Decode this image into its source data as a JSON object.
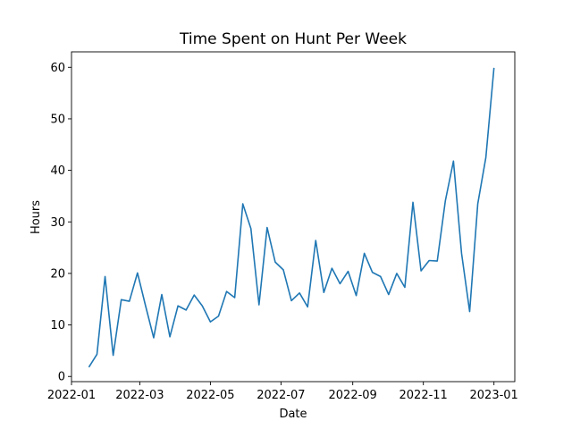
{
  "chart_data": {
    "type": "line",
    "title": "Time Spent on Hunt Per Week",
    "xlabel": "Date",
    "ylabel": "Hours",
    "ylim": [
      -1,
      63
    ],
    "xlim": [
      "2022-01-01",
      "2023-01-19"
    ],
    "grid": false,
    "line_color": "#1f77b4",
    "y_ticks": [
      0,
      10,
      20,
      30,
      40,
      50,
      60
    ],
    "x_ticks": [
      "2022-01-01",
      "2022-03-01",
      "2022-05-01",
      "2022-07-01",
      "2022-09-01",
      "2022-11-01",
      "2023-01-01"
    ],
    "x_tick_labels": [
      "2022-01",
      "2022-03",
      "2022-05",
      "2022-07",
      "2022-09",
      "2022-11",
      "2023-01"
    ],
    "series": [
      {
        "x": [
          "2022-01-16",
          "2022-01-23",
          "2022-01-30",
          "2022-02-06",
          "2022-02-13",
          "2022-02-20",
          "2022-02-27",
          "2022-03-06",
          "2022-03-13",
          "2022-03-20",
          "2022-03-27",
          "2022-04-03",
          "2022-04-10",
          "2022-04-17",
          "2022-04-24",
          "2022-05-01",
          "2022-05-08",
          "2022-05-15",
          "2022-05-22",
          "2022-05-29",
          "2022-06-05",
          "2022-06-12",
          "2022-06-19",
          "2022-06-26",
          "2022-07-03",
          "2022-07-10",
          "2022-07-17",
          "2022-07-24",
          "2022-07-31",
          "2022-08-07",
          "2022-08-14",
          "2022-08-21",
          "2022-08-28",
          "2022-09-04",
          "2022-09-11",
          "2022-09-18",
          "2022-09-25",
          "2022-10-02",
          "2022-10-09",
          "2022-10-16",
          "2022-10-23",
          "2022-10-30",
          "2022-11-06",
          "2022-11-13",
          "2022-11-20",
          "2022-11-27",
          "2022-12-04",
          "2022-12-11",
          "2022-12-18",
          "2022-12-25",
          "2023-01-01"
        ],
        "values": [
          1.8,
          4.3,
          19.4,
          4.1,
          14.9,
          14.6,
          20.1,
          13.7,
          7.5,
          15.9,
          7.7,
          13.7,
          12.9,
          15.8,
          13.7,
          10.6,
          11.7,
          16.5,
          15.3,
          33.5,
          28.7,
          13.9,
          28.9,
          22.2,
          20.7,
          14.7,
          16.2,
          13.5,
          26.4,
          16.3,
          21.0,
          18.0,
          20.4,
          15.7,
          23.9,
          20.2,
          19.4,
          15.9,
          20.0,
          17.3,
          33.8,
          20.5,
          22.5,
          22.4,
          34.1,
          41.8,
          23.9,
          12.6,
          33.5,
          42.5,
          59.9
        ]
      }
    ]
  }
}
